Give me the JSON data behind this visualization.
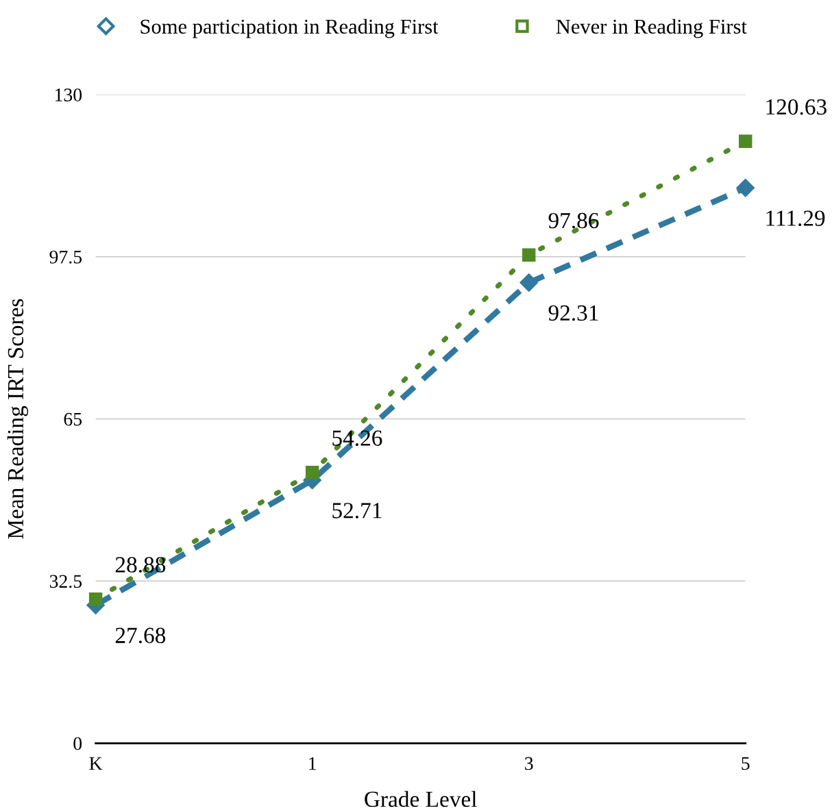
{
  "chart_data": {
    "type": "line",
    "xlabel": "Grade Level",
    "ylabel": "Mean Reading IRT Scores",
    "categories": [
      "K",
      "1",
      "3",
      "5"
    ],
    "series": [
      {
        "name": "Some participation in Reading First",
        "color": "#31799f",
        "values": [
          27.68,
          52.71,
          92.31,
          111.29
        ],
        "marker": "diamond",
        "line_style": "dashed"
      },
      {
        "name": "Never in Reading First",
        "color": "#4f8a25",
        "values": [
          28.88,
          54.26,
          97.86,
          120.63
        ],
        "marker": "square",
        "line_style": "dotted"
      }
    ],
    "ylim": [
      0,
      130
    ],
    "yticks": [
      0,
      32.5,
      65,
      97.5,
      130
    ],
    "grid": "y",
    "legend": "top",
    "data_labels": true
  }
}
